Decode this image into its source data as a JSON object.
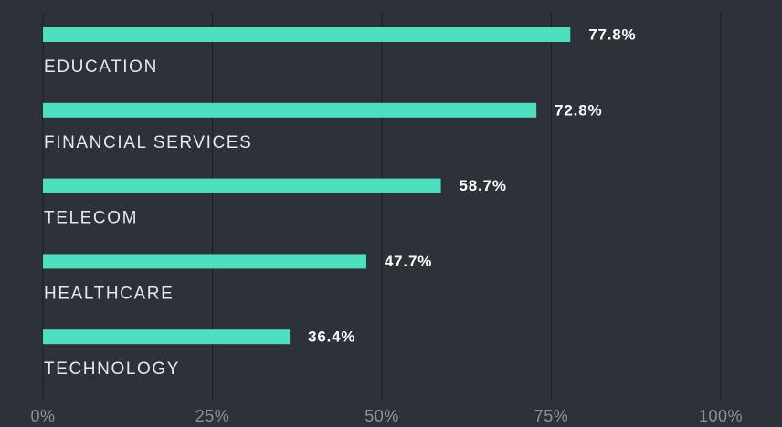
{
  "chart_data": {
    "type": "bar",
    "orientation": "horizontal",
    "categories": [
      "EDUCATION",
      "FINANCIAL SERVICES",
      "TELECOM",
      "HEALTHCARE",
      "TECHNOLOGY"
    ],
    "values": [
      77.8,
      72.8,
      58.7,
      47.7,
      36.4
    ],
    "value_labels": [
      "77.8%",
      "72.8%",
      "58.7%",
      "47.7%",
      "36.4%"
    ],
    "color": "#4ddfc0",
    "xlim": [
      0,
      100
    ],
    "xticks": [
      {
        "value": 0,
        "label": "0%"
      },
      {
        "value": 25,
        "label": "25%"
      },
      {
        "value": 50,
        "label": "50%"
      },
      {
        "value": 75,
        "label": "75%"
      },
      {
        "value": 100,
        "label": "100%"
      }
    ],
    "grid": true
  }
}
